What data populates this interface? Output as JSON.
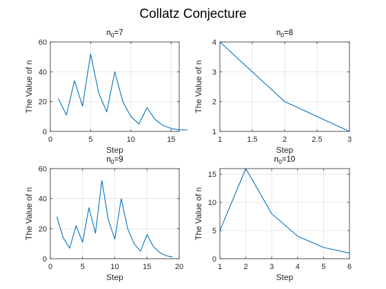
{
  "figure": {
    "suptitle": "Collatz Conjecture",
    "line_color": "#0072BD",
    "grid_color": "#e6e6e6",
    "axis_color": "#262626"
  },
  "chart_data": [
    {
      "type": "line",
      "title_base": "n",
      "title_sub": "0",
      "title_rest": "=7",
      "xlabel": "Step",
      "ylabel": "The Value of n",
      "xlim": [
        0,
        16
      ],
      "ylim": [
        0,
        60
      ],
      "xticks": [
        0,
        5,
        10,
        15
      ],
      "yticks": [
        0,
        20,
        40,
        60
      ],
      "grid": true,
      "x": [
        1,
        2,
        3,
        4,
        5,
        6,
        7,
        8,
        9,
        10,
        11,
        12,
        13,
        14,
        15,
        16,
        17
      ],
      "y": [
        22,
        11,
        34,
        17,
        52,
        26,
        13,
        40,
        20,
        10,
        5,
        16,
        8,
        4,
        2,
        1,
        1
      ]
    },
    {
      "type": "line",
      "title_base": "n",
      "title_sub": "0",
      "title_rest": "=8",
      "xlabel": "Step",
      "ylabel": "The Value of n",
      "xlim": [
        1,
        3
      ],
      "ylim": [
        1,
        4
      ],
      "xticks": [
        1,
        1.5,
        2,
        2.5,
        3
      ],
      "yticks": [
        1,
        2,
        3,
        4
      ],
      "grid": true,
      "x": [
        1,
        2,
        3
      ],
      "y": [
        4,
        2,
        1
      ]
    },
    {
      "type": "line",
      "title_base": "n",
      "title_sub": "0",
      "title_rest": "=9",
      "xlabel": "Step",
      "ylabel": "The Value of n",
      "xlim": [
        0,
        20
      ],
      "ylim": [
        0,
        60
      ],
      "xticks": [
        0,
        5,
        10,
        15,
        20
      ],
      "yticks": [
        0,
        20,
        40,
        60
      ],
      "grid": true,
      "x": [
        1,
        2,
        3,
        4,
        5,
        6,
        7,
        8,
        9,
        10,
        11,
        12,
        13,
        14,
        15,
        16,
        17,
        18,
        19
      ],
      "y": [
        28,
        14,
        7,
        22,
        11,
        34,
        17,
        52,
        26,
        13,
        40,
        20,
        10,
        5,
        16,
        8,
        4,
        2,
        1
      ]
    },
    {
      "type": "line",
      "title_base": "n",
      "title_sub": "0",
      "title_rest": "=10",
      "xlabel": "Step",
      "ylabel": "The Value of n",
      "xlim": [
        1,
        6
      ],
      "ylim": [
        0,
        16
      ],
      "xticks": [
        1,
        2,
        3,
        4,
        5,
        6
      ],
      "yticks": [
        0,
        5,
        10,
        15
      ],
      "grid": true,
      "x": [
        1,
        2,
        3,
        4,
        5,
        6
      ],
      "y": [
        5,
        16,
        8,
        4,
        2,
        1
      ]
    }
  ]
}
